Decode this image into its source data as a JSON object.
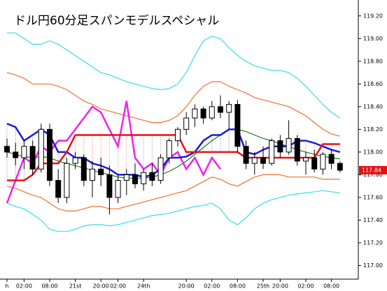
{
  "chart_data": {
    "type": "candlestick",
    "title": "ドル円60分足スパンモデルスペシャル",
    "categories": [
      "h",
      null,
      "02:00",
      null,
      null,
      "08:00",
      null,
      null,
      "21st",
      null,
      null,
      "20:00",
      null,
      "02:00",
      null,
      null,
      "24th",
      null,
      null,
      null,
      null,
      "20:00",
      null,
      null,
      "02:00",
      null,
      null,
      "08:00",
      null,
      null,
      "25th",
      null,
      "20:00",
      null,
      null,
      "02:00",
      null,
      null,
      "08:00",
      null
    ],
    "open": [
      118.05,
      118.0,
      117.95,
      118.05,
      117.85,
      118.2,
      117.75,
      117.6,
      117.9,
      117.95,
      117.75,
      117.85,
      117.8,
      117.6,
      117.75,
      117.8,
      117.72,
      117.82,
      117.75,
      117.95,
      118.1,
      118.2,
      118.3,
      118.38,
      118.3,
      118.4,
      118.35,
      118.42,
      118.05,
      117.9,
      117.95,
      117.9,
      118.1,
      118.0,
      118.12,
      117.92,
      117.95,
      117.85,
      117.98,
      117.9
    ],
    "high": [
      118.12,
      118.08,
      118.1,
      118.1,
      118.25,
      118.25,
      117.85,
      117.95,
      118.0,
      117.98,
      117.92,
      117.95,
      117.88,
      117.8,
      117.85,
      117.9,
      117.85,
      117.9,
      117.98,
      118.12,
      118.22,
      118.35,
      118.42,
      118.4,
      118.45,
      118.5,
      118.45,
      118.46,
      118.1,
      118.0,
      118.05,
      118.12,
      118.15,
      118.28,
      118.15,
      118.0,
      118.02,
      118.0,
      118.02,
      117.92
    ],
    "low": [
      117.95,
      117.88,
      117.85,
      117.8,
      117.82,
      117.7,
      117.55,
      117.55,
      117.85,
      117.7,
      117.6,
      117.7,
      117.45,
      117.55,
      117.62,
      117.68,
      117.66,
      117.7,
      117.72,
      117.9,
      118.05,
      118.15,
      118.22,
      118.25,
      118.28,
      118.3,
      118.2,
      118.0,
      117.85,
      117.8,
      117.85,
      117.88,
      117.95,
      117.98,
      117.88,
      117.8,
      117.82,
      117.8,
      117.85,
      117.82
    ],
    "close": [
      118.0,
      117.95,
      118.05,
      117.85,
      118.2,
      117.75,
      117.6,
      117.9,
      117.95,
      117.75,
      117.85,
      117.8,
      117.6,
      117.75,
      117.8,
      117.72,
      117.82,
      117.75,
      117.95,
      118.1,
      118.2,
      118.3,
      118.38,
      118.3,
      118.4,
      118.35,
      118.42,
      118.05,
      117.9,
      117.95,
      117.9,
      118.1,
      118.0,
      118.12,
      117.92,
      117.95,
      117.85,
      117.98,
      117.9,
      117.84
    ],
    "up_color": "#ffffff",
    "down_color": "#000000",
    "series": [
      {
        "color": "#33dde8",
        "values": [
          119.05,
          119.05,
          119.0,
          118.95,
          118.95,
          118.98,
          118.95,
          118.9,
          118.85,
          118.8,
          118.75,
          118.7,
          118.68,
          118.65,
          118.62,
          118.6,
          118.58,
          118.56,
          118.55,
          118.56,
          118.6,
          118.7,
          118.85,
          118.98,
          119.02,
          119.0,
          118.92,
          118.85,
          118.8,
          118.76,
          118.74,
          118.72,
          118.72,
          118.7,
          118.65,
          118.58,
          118.5,
          118.42,
          118.35,
          118.3
        ]
      },
      {
        "color": "#33dde8",
        "values": [
          117.55,
          117.52,
          117.5,
          117.45,
          117.4,
          117.32,
          117.3,
          117.3,
          117.32,
          117.35,
          117.36,
          117.36,
          117.35,
          117.36,
          117.38,
          117.4,
          117.42,
          117.44,
          117.45,
          117.46,
          117.48,
          117.5,
          117.52,
          117.53,
          117.55,
          117.5,
          117.4,
          117.36,
          117.42,
          117.5,
          117.55,
          117.58,
          117.6,
          117.62,
          117.63,
          117.64,
          117.65,
          117.66,
          117.65,
          117.64
        ]
      },
      {
        "color": "#f07030",
        "values": [
          118.7,
          118.68,
          118.65,
          118.6,
          118.6,
          118.6,
          118.58,
          118.55,
          118.5,
          118.45,
          118.42,
          118.38,
          118.36,
          118.34,
          118.32,
          118.3,
          118.28,
          118.26,
          118.26,
          118.28,
          118.32,
          118.4,
          118.5,
          118.58,
          118.62,
          118.62,
          118.58,
          118.55,
          118.52,
          118.48,
          118.46,
          118.44,
          118.42,
          118.4,
          118.36,
          118.32,
          118.26,
          118.2,
          118.16,
          118.14
        ]
      },
      {
        "color": "#f07030",
        "values": [
          117.7,
          117.68,
          117.65,
          117.62,
          117.6,
          117.55,
          117.5,
          117.48,
          117.48,
          117.5,
          117.52,
          117.52,
          117.5,
          117.5,
          117.52,
          117.54,
          117.56,
          117.58,
          117.6,
          117.62,
          117.64,
          117.66,
          117.7,
          117.74,
          117.78,
          117.76,
          117.72,
          117.7,
          117.74,
          117.78,
          117.8,
          117.8,
          117.8,
          117.78,
          117.78,
          117.78,
          117.78,
          117.76,
          117.76,
          117.76
        ]
      },
      {
        "color": "#1a7a1a",
        "values": [
          118.0,
          117.98,
          117.96,
          117.95,
          117.96,
          117.95,
          117.92,
          117.9,
          117.88,
          117.86,
          117.84,
          117.82,
          117.8,
          117.78,
          117.77,
          117.77,
          117.77,
          117.78,
          117.8,
          117.83,
          117.87,
          117.92,
          117.98,
          118.04,
          118.1,
          118.15,
          118.2,
          118.2,
          118.18,
          118.15,
          118.12,
          118.1,
          118.07,
          118.05,
          118.02,
          118.0,
          117.98,
          117.96,
          117.95,
          117.94
        ]
      },
      {
        "color": "#ee22ee",
        "values": [
          117.55,
          117.75,
          117.95,
          117.9,
          118.05,
          118.0,
          118.1,
          118.1,
          118.2,
          118.3,
          118.4,
          118.35,
          118.2,
          118.05,
          118.45,
          117.95,
          117.85,
          117.9,
          117.8,
          117.95,
          118.0,
          117.85,
          117.95,
          117.8,
          117.95,
          117.85,
          null,
          null,
          null,
          null,
          null,
          null,
          null,
          null,
          null,
          null,
          null,
          null,
          null,
          null
        ]
      },
      {
        "color": "#1a1ae0",
        "values": [
          118.25,
          118.22,
          118.1,
          118.15,
          118.2,
          118.15,
          118.0,
          118.0,
          117.95,
          117.95,
          117.9,
          117.88,
          117.85,
          117.8,
          117.8,
          117.8,
          117.78,
          117.8,
          117.85,
          117.95,
          117.95,
          117.96,
          118.0,
          118.1,
          118.15,
          118.15,
          118.2,
          118.2,
          118.0,
          117.98,
          118.02,
          118.05,
          118.05,
          118.05,
          118.1,
          118.1,
          118.08,
          118.05,
          118.02,
          118.0
        ]
      },
      {
        "color": "#e81010",
        "values": [
          117.75,
          117.75,
          117.75,
          117.8,
          117.9,
          117.9,
          117.9,
          118.0,
          118.15,
          118.15,
          118.15,
          118.15,
          118.15,
          118.15,
          118.15,
          118.15,
          118.15,
          118.15,
          118.15,
          118.15,
          118.15,
          118.0,
          118.0,
          118.0,
          118.0,
          118.0,
          118.0,
          118.0,
          117.95,
          117.95,
          117.95,
          117.95,
          117.95,
          117.95,
          117.95,
          117.95,
          117.95,
          118.07,
          118.07,
          118.07
        ]
      }
    ],
    "span_fill": [
      6,
      7
    ],
    "last_price": 117.84,
    "last_price_color": "#e81010",
    "ylim": [
      116.88,
      119.34
    ],
    "yticks": [
      {
        "value": 117.0,
        "label": "117.00"
      },
      {
        "value": 117.2,
        "label": "117.20"
      },
      {
        "value": 117.4,
        "label": "117.40"
      },
      {
        "value": 117.6,
        "label": "117.60"
      },
      {
        "value": 117.8,
        "label": "117.80"
      },
      {
        "value": 118.0,
        "label": "118.00"
      },
      {
        "value": 118.2,
        "label": "118.20"
      },
      {
        "value": 118.4,
        "label": "118.40"
      },
      {
        "value": 118.6,
        "label": "118.60"
      },
      {
        "value": 118.8,
        "label": "118.80"
      },
      {
        "value": 119.0,
        "label": "119.00"
      },
      {
        "value": 119.2,
        "label": "119.20"
      }
    ]
  }
}
